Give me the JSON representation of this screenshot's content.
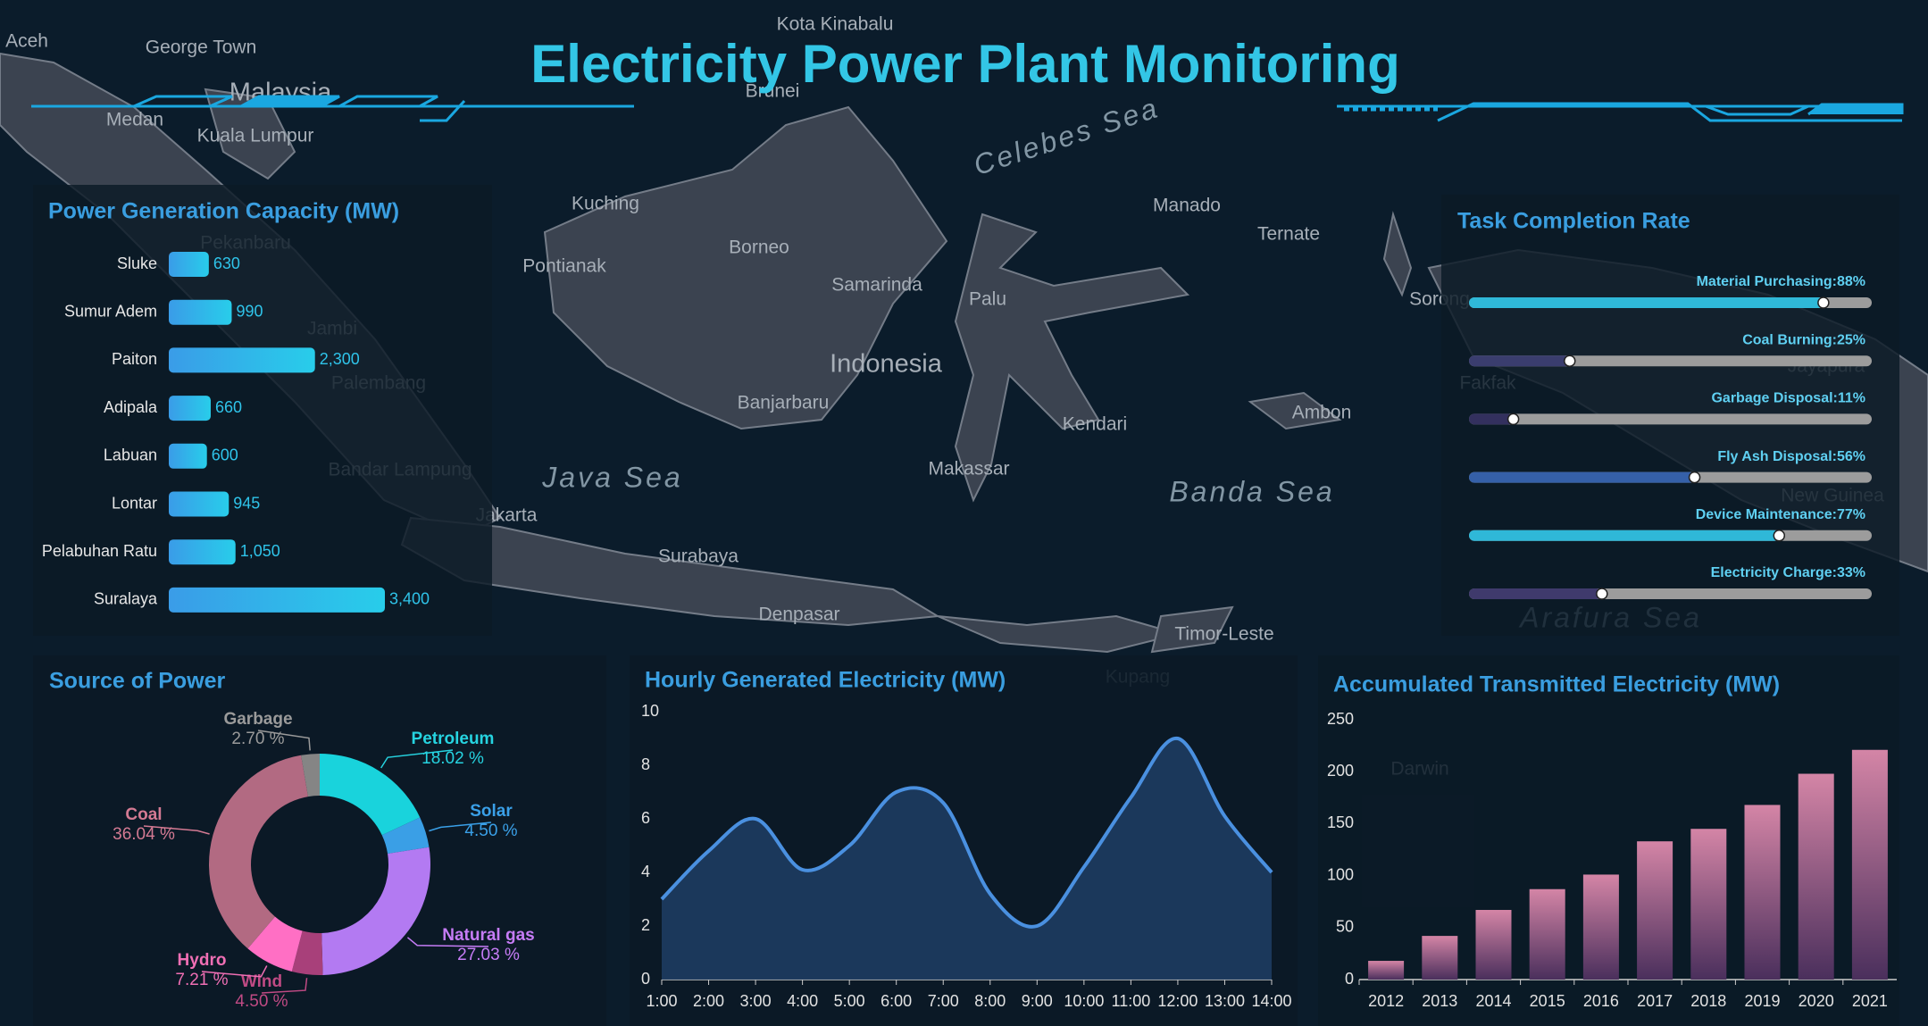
{
  "title": "Electricity Power Plant Monitoring",
  "map_labels": [
    "Aceh",
    "George Town",
    "Kota Kinabalu",
    "Malaysia",
    "Medan",
    "Kuala Lumpur",
    "Brunei",
    "Celebes Sea",
    "Kuching",
    "Manado",
    "Ternate",
    "Pontianak",
    "Borneo",
    "Samarinda",
    "Palu",
    "Indonesia",
    "Banjarbaru",
    "Kendari",
    "Ambon",
    "Java Sea",
    "Makassar",
    "Banda Sea",
    "Jakarta",
    "Surabaya",
    "Denpasar",
    "Timor-Leste",
    "Kupang",
    "Darwin",
    "Arafura Sea",
    "New Guinea",
    "Jambi",
    "Palembang",
    "Pekanbaru",
    "Bandar Lampung",
    "Jayapura",
    "Fakfak",
    "Sorong"
  ],
  "chart_data": [
    {
      "type": "hbar",
      "title": "Power Generation Capacity (MW)",
      "categories": [
        "Sluke",
        "Sumur Adem",
        "Paiton",
        "Adipala",
        "Labuan",
        "Lontar",
        "Pelabuhan Ratu",
        "Suralaya"
      ],
      "values": [
        630,
        990,
        2300,
        660,
        600,
        945,
        1050,
        3400
      ],
      "value_labels": [
        "630",
        "990",
        "2,300",
        "660",
        "600",
        "945",
        "1,050",
        "3,400"
      ],
      "color": "#2fc4ea"
    },
    {
      "type": "progress",
      "title": "Task Completion Rate",
      "values": [
        88,
        25,
        11,
        56,
        77,
        33
      ],
      "value_labels": [
        "Material Purchasing:88%",
        "Coal Burning:25%",
        "Garbage Disposal:11%",
        "Fly Ash Disposal:56%",
        "Device Maintenance:77%",
        "Electricity Charge:33%"
      ],
      "colors": [
        "#2fb8d8",
        "#3a3d6e",
        "#33305e",
        "#3560a8",
        "#2fb8d8",
        "#3f3a6c"
      ],
      "xlim": [
        0,
        100
      ]
    },
    {
      "type": "pie",
      "title": "Source of Power",
      "categories": [
        "Petroleum",
        "Solar",
        "Natural gas",
        "Wind",
        "Hydro",
        "Coal",
        "Garbage"
      ],
      "values": [
        18.02,
        4.5,
        27.03,
        4.5,
        7.21,
        36.04,
        2.7
      ],
      "value_labels": [
        "18.02 %",
        "4.50 %",
        "27.03 %",
        "4.50 %",
        "7.21 %",
        "36.04 %",
        "2.70 %"
      ],
      "colors": [
        "#19d3dc",
        "#3a9fe6",
        "#b37af2",
        "#a8407a",
        "#ff6fc4",
        "#b26a82",
        "#858585"
      ]
    },
    {
      "type": "area",
      "title": "Hourly Generated Electricity (MW)",
      "categories": [
        "1:00",
        "2:00",
        "3:00",
        "4:00",
        "5:00",
        "6:00",
        "7:00",
        "8:00",
        "9:00",
        "10:00",
        "11:00",
        "12:00",
        "13:00",
        "14:00"
      ],
      "values": [
        3,
        4.8,
        6,
        4.1,
        5,
        7,
        6.6,
        3.2,
        2,
        4.2,
        6.8,
        9,
        6.1,
        4
      ],
      "color": "#4a90e0",
      "ylim": [
        0,
        10
      ],
      "yticks": [
        0,
        2,
        4,
        6,
        8,
        10
      ]
    },
    {
      "type": "bar",
      "title": "Accumulated Transmitted Electricity (MW)",
      "categories": [
        "2012",
        "2013",
        "2014",
        "2015",
        "2016",
        "2017",
        "2018",
        "2019",
        "2020",
        "2021"
      ],
      "values": [
        18,
        42,
        67,
        87,
        101,
        133,
        145,
        168,
        198,
        221
      ],
      "color": "#d485a6",
      "ylim": [
        0,
        250
      ],
      "yticks": [
        0,
        50,
        100,
        150,
        200,
        250
      ]
    }
  ]
}
